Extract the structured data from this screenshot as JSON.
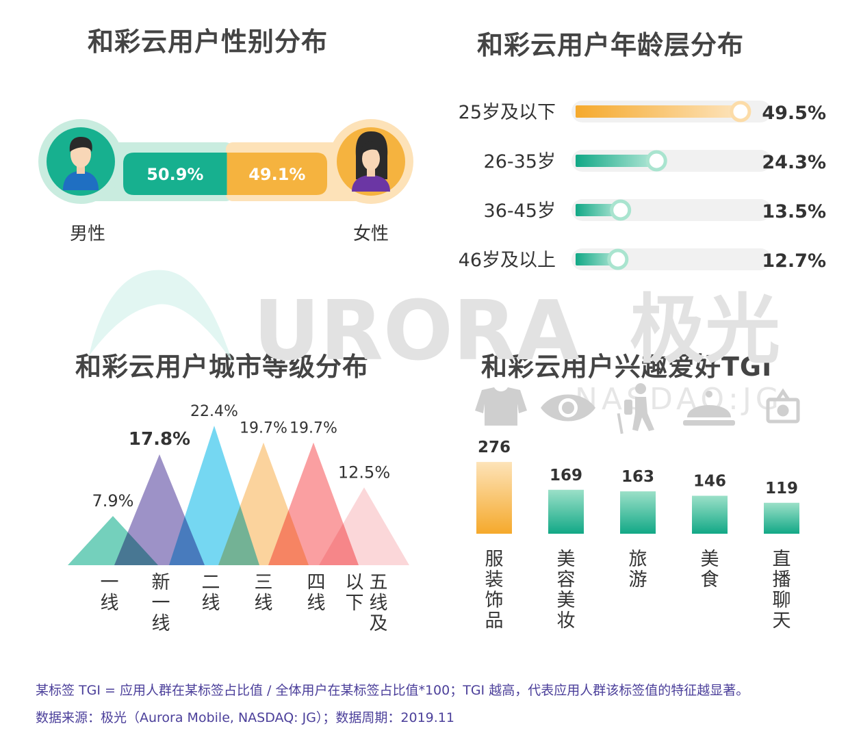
{
  "titles": {
    "gender": "和彩云用户性别分布",
    "age": "和彩云用户年龄层分布",
    "city": "和彩云用户城市等级分布",
    "interest": "和彩云用户兴趣爱好TGI"
  },
  "watermark": {
    "text": "URORA",
    "brand_cn": "极光",
    "ticker": "NASDAQ:JG"
  },
  "footnotes": {
    "line1": "某标签 TGI = 应用人群在某标签占比值 / 全体用户在某标签占比值*100；TGI 越高，代表应用人群该标签值的特征越显著。",
    "line2": "数据来源：极光（Aurora Mobile, NASDAQ: JG）；数据周期：2019.11"
  },
  "chart_data": [
    {
      "type": "bar",
      "title": "和彩云用户性别分布",
      "categories": [
        "男性",
        "女性"
      ],
      "values": [
        50.9,
        49.1
      ],
      "labels": [
        "50.9%",
        "49.1%"
      ],
      "colors": [
        "#17b08f",
        "#f5b33f"
      ]
    },
    {
      "type": "bar",
      "title": "和彩云用户年龄层分布",
      "categories": [
        "25岁及以下",
        "26-35岁",
        "36-45岁",
        "46岁及以上"
      ],
      "values": [
        49.5,
        24.3,
        13.5,
        12.7
      ],
      "labels": [
        "49.5%",
        "24.3%",
        "13.5%",
        "12.7%"
      ],
      "colors": [
        "#f5b33f",
        "#17b08f",
        "#17b08f",
        "#17b08f"
      ]
    },
    {
      "type": "area",
      "title": "和彩云用户城市等级分布",
      "categories": [
        "一线",
        "新一线",
        "二线",
        "三线",
        "四线",
        "五线及以下"
      ],
      "values": [
        7.9,
        17.8,
        22.4,
        19.7,
        19.7,
        12.5
      ],
      "labels": [
        "7.9%",
        "17.8%",
        "22.4%",
        "19.7%",
        "19.7%",
        "12.5%"
      ],
      "colors": [
        "#5cc8b0",
        "#8c7fbd",
        "#5dd0f0",
        "#fbcc8c",
        "#f98e90",
        "#fbd0d3"
      ]
    },
    {
      "type": "bar",
      "title": "和彩云用户兴趣爱好TGI",
      "categories": [
        "服装饰品",
        "美容美妆",
        "旅游",
        "美食",
        "直播聊天"
      ],
      "values": [
        276,
        169,
        163,
        146,
        119
      ],
      "labels": [
        "276",
        "169",
        "163",
        "146",
        "119"
      ],
      "icons": [
        "sweater-icon",
        "eye-icon",
        "hiker-icon",
        "dish-cover-icon",
        "live-stream-icon"
      ],
      "colors": [
        "#f5b33f",
        "#17b08f",
        "#17b08f",
        "#17b08f",
        "#17b08f"
      ]
    }
  ]
}
